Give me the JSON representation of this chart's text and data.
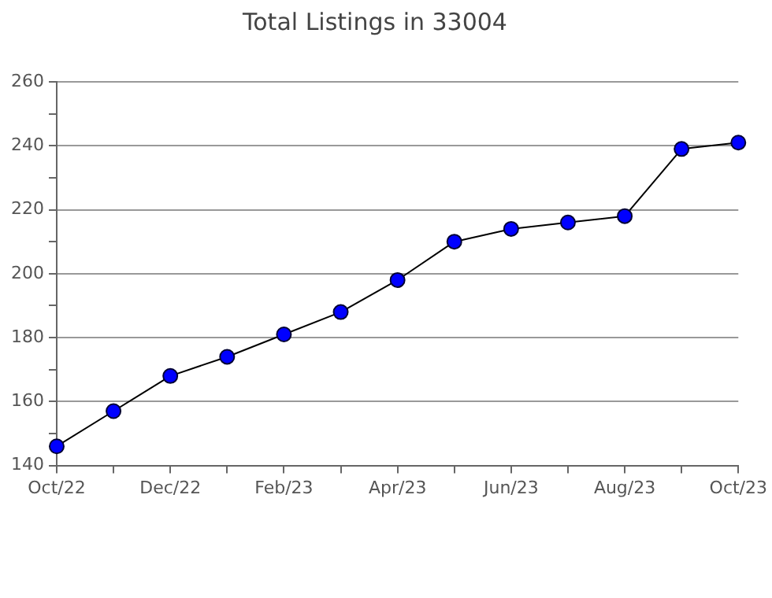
{
  "chart_data": {
    "type": "line",
    "title": "Total Listings in 33004",
    "categories": [
      "Oct/22",
      null,
      "Dec/22",
      null,
      "Feb/23",
      null,
      "Apr/23",
      null,
      "Jun/23",
      null,
      "Aug/23",
      null,
      "Oct/23"
    ],
    "series": [
      {
        "color": "#0000ff",
        "values": [
          146,
          157,
          168,
          174,
          181,
          188,
          198,
          210,
          214,
          216,
          218,
          239,
          241
        ]
      }
    ],
    "ylim": [
      140,
      260
    ],
    "yticks": [
      140,
      {
        "value": 150,
        "label": null
      },
      160,
      {
        "value": 170,
        "label": null
      },
      180,
      {
        "value": 190,
        "label": null
      },
      200,
      {
        "value": 210,
        "label": null
      },
      220,
      {
        "value": 230,
        "label": null
      },
      240,
      {
        "value": 250,
        "label": null
      },
      260
    ],
    "grid": "y",
    "marker": "circle",
    "line_style": "solid",
    "legend": false
  }
}
